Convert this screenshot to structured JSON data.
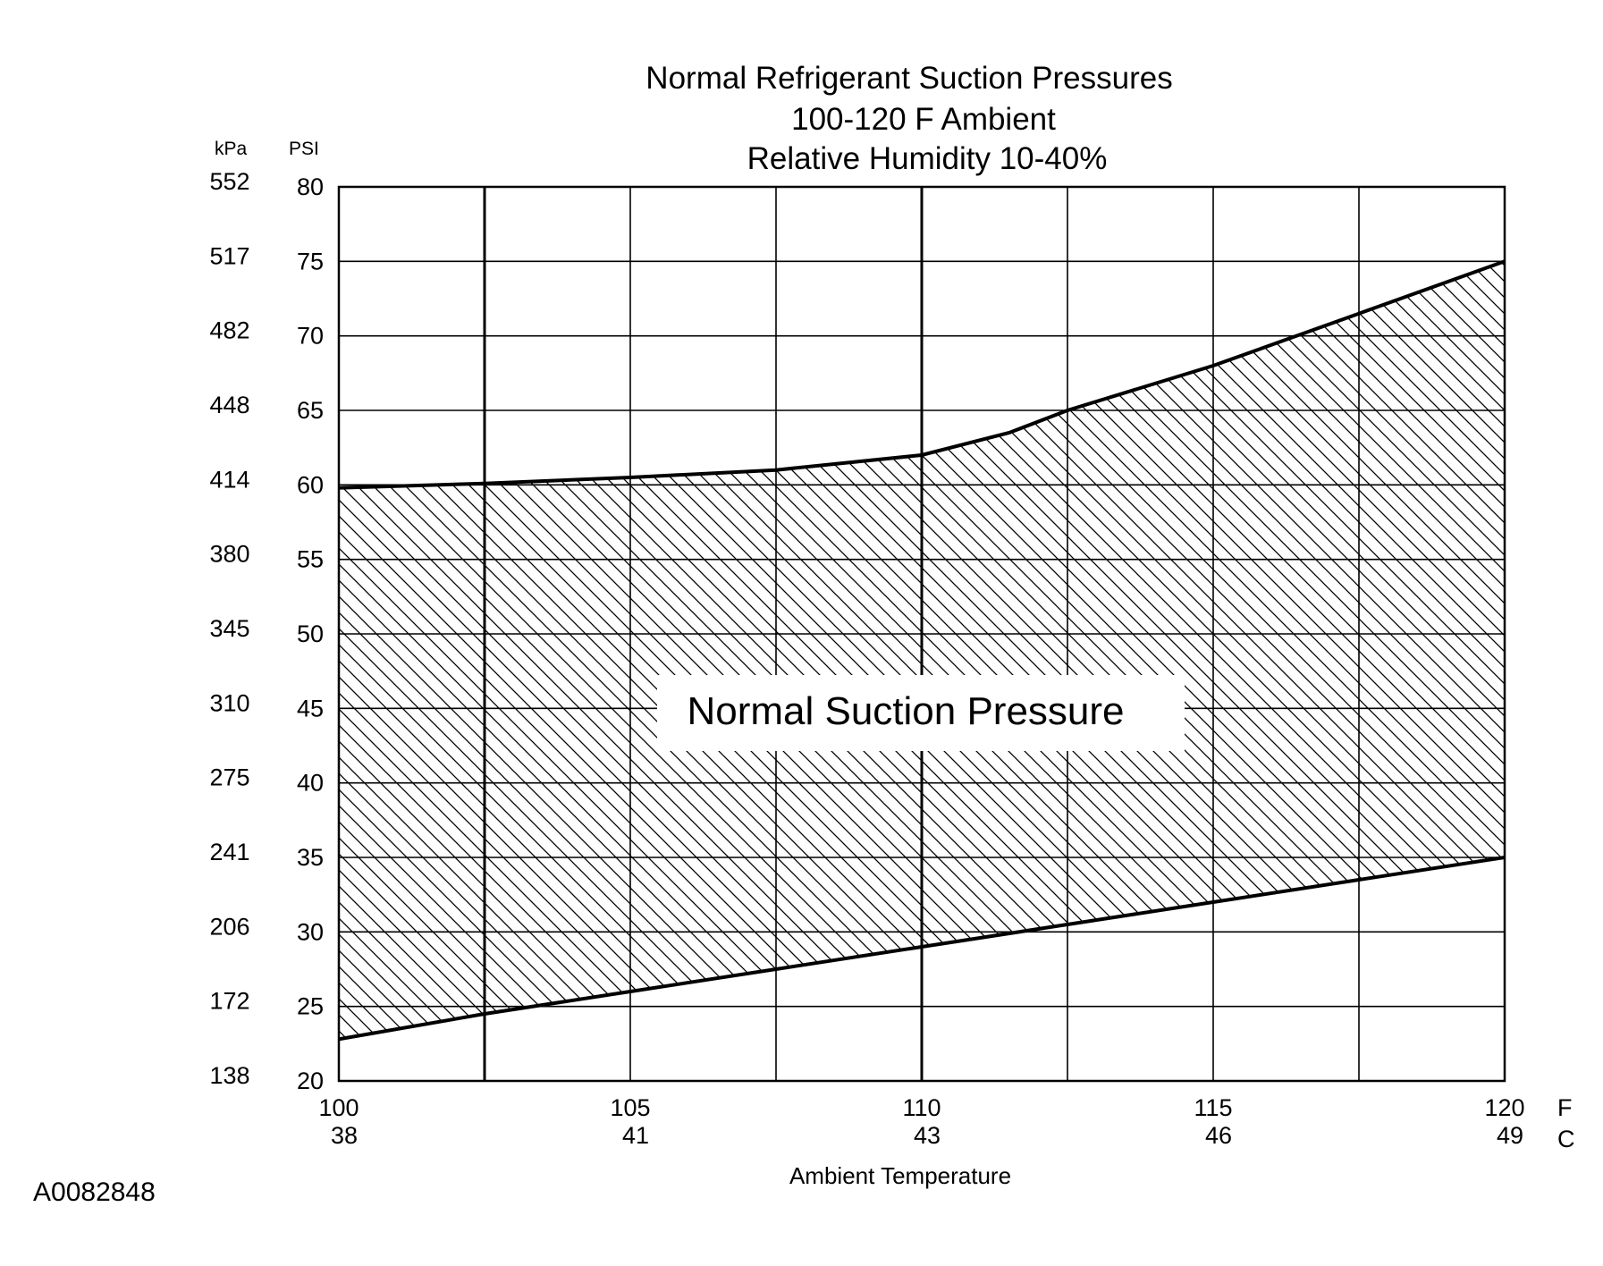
{
  "chart_data": {
    "type": "area",
    "title_lines": [
      "Normal  Refrigerant  Suction  Pressures",
      "100-120 F Ambient",
      "Relative Humidity 10-40%"
    ],
    "xlabel": "Ambient Temperature",
    "x_unit_primary": "F",
    "x_unit_secondary": "C",
    "xlim": [
      100,
      120
    ],
    "x_ticks": [
      {
        "f": 100,
        "label_f": "100",
        "label_c": "38"
      },
      {
        "f": 105,
        "label_f": "105",
        "label_c": "41"
      },
      {
        "f": 110,
        "label_f": "110",
        "label_c": "43"
      },
      {
        "f": 115,
        "label_f": "115",
        "label_c": "46"
      },
      {
        "f": 120,
        "label_f": "120",
        "label_c": "49"
      }
    ],
    "x_minor_gridlines": [
      102.5,
      107.5,
      112.5,
      117.5
    ],
    "x_bold_gridlines": [
      102.5,
      110
    ],
    "y_unit_primary": "PSI",
    "y_unit_secondary": "kPa",
    "ylim": [
      20,
      80
    ],
    "y_ticks": [
      {
        "psi": 20,
        "label_psi": "20",
        "label_kpa": "138"
      },
      {
        "psi": 25,
        "label_psi": "25",
        "label_kpa": "172"
      },
      {
        "psi": 30,
        "label_psi": "30",
        "label_kpa": "206"
      },
      {
        "psi": 35,
        "label_psi": "35",
        "label_kpa": "241"
      },
      {
        "psi": 40,
        "label_psi": "40",
        "label_kpa": "275"
      },
      {
        "psi": 45,
        "label_psi": "45",
        "label_kpa": "310"
      },
      {
        "psi": 50,
        "label_psi": "50",
        "label_kpa": "345"
      },
      {
        "psi": 55,
        "label_psi": "55",
        "label_kpa": "380"
      },
      {
        "psi": 60,
        "label_psi": "60",
        "label_kpa": "414"
      },
      {
        "psi": 65,
        "label_psi": "65",
        "label_kpa": "448"
      },
      {
        "psi": 70,
        "label_psi": "70",
        "label_kpa": "482"
      },
      {
        "psi": 75,
        "label_psi": "75",
        "label_kpa": "517"
      },
      {
        "psi": 80,
        "label_psi": "80",
        "label_kpa": "552"
      }
    ],
    "grid": true,
    "upper_bound": {
      "x": [
        100,
        102.5,
        105,
        107.5,
        110,
        111.5,
        112.5,
        115,
        117.5,
        120
      ],
      "y": [
        59.8,
        60.1,
        60.5,
        61.0,
        62.0,
        63.5,
        65.0,
        68.0,
        71.5,
        75.0
      ]
    },
    "lower_bound": {
      "x": [
        100,
        102.5,
        105,
        107.5,
        110,
        112.5,
        115,
        117.5,
        120
      ],
      "y": [
        22.8,
        24.5,
        26.0,
        27.5,
        29.0,
        30.5,
        32.0,
        33.5,
        35.0
      ]
    },
    "band_label": "Normal Suction Pressure",
    "band_fill": "hatched"
  },
  "figure_id": "A0082848",
  "colors": {
    "line": "#000000",
    "background": "#ffffff"
  }
}
